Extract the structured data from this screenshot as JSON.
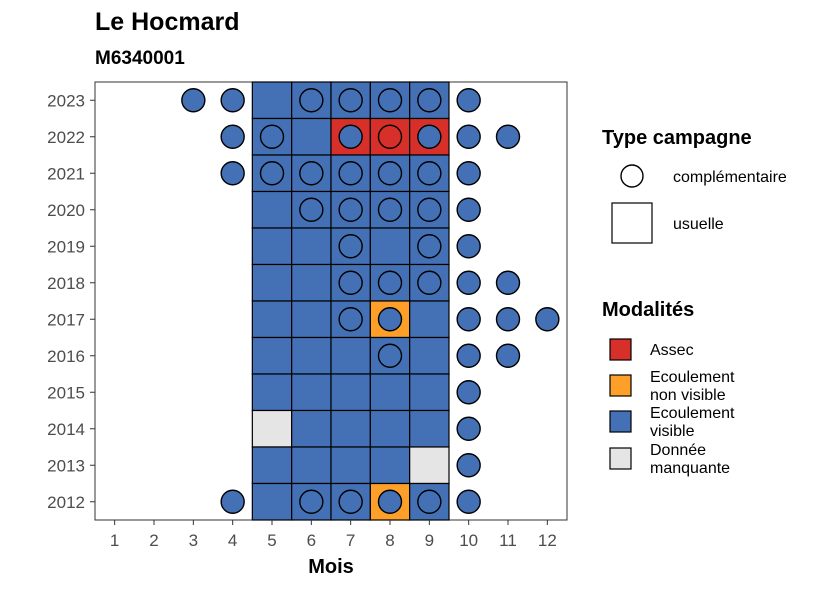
{
  "title": "Le Hocmard",
  "subtitle": "M6340001",
  "chart_data": {
    "type": "heatmap",
    "xlabel": "Mois",
    "ylabel": "",
    "x_ticks": [
      "1",
      "2",
      "3",
      "4",
      "5",
      "6",
      "7",
      "8",
      "9",
      "10",
      "11",
      "12"
    ],
    "y_ticks": [
      "2012",
      "2013",
      "2014",
      "2015",
      "2016",
      "2017",
      "2018",
      "2019",
      "2020",
      "2021",
      "2022",
      "2023"
    ],
    "xlim": [
      0.5,
      12.5
    ],
    "ylim": [
      2011.5,
      2023.5
    ],
    "grid": false,
    "usual_campaign_months": [
      5,
      6,
      7,
      8,
      9
    ],
    "cells": [
      {
        "year": 2023,
        "month": 5,
        "modalite": "visible"
      },
      {
        "year": 2023,
        "month": 6,
        "modalite": "visible"
      },
      {
        "year": 2023,
        "month": 7,
        "modalite": "visible"
      },
      {
        "year": 2023,
        "month": 8,
        "modalite": "visible"
      },
      {
        "year": 2023,
        "month": 9,
        "modalite": "visible"
      },
      {
        "year": 2022,
        "month": 5,
        "modalite": "visible"
      },
      {
        "year": 2022,
        "month": 6,
        "modalite": "visible"
      },
      {
        "year": 2022,
        "month": 7,
        "modalite": "assec"
      },
      {
        "year": 2022,
        "month": 8,
        "modalite": "assec"
      },
      {
        "year": 2022,
        "month": 9,
        "modalite": "assec"
      },
      {
        "year": 2021,
        "month": 5,
        "modalite": "visible"
      },
      {
        "year": 2021,
        "month": 6,
        "modalite": "visible"
      },
      {
        "year": 2021,
        "month": 7,
        "modalite": "visible"
      },
      {
        "year": 2021,
        "month": 8,
        "modalite": "visible"
      },
      {
        "year": 2021,
        "month": 9,
        "modalite": "visible"
      },
      {
        "year": 2020,
        "month": 5,
        "modalite": "visible"
      },
      {
        "year": 2020,
        "month": 6,
        "modalite": "visible"
      },
      {
        "year": 2020,
        "month": 7,
        "modalite": "visible"
      },
      {
        "year": 2020,
        "month": 8,
        "modalite": "visible"
      },
      {
        "year": 2020,
        "month": 9,
        "modalite": "visible"
      },
      {
        "year": 2019,
        "month": 5,
        "modalite": "visible"
      },
      {
        "year": 2019,
        "month": 6,
        "modalite": "visible"
      },
      {
        "year": 2019,
        "month": 7,
        "modalite": "visible"
      },
      {
        "year": 2019,
        "month": 8,
        "modalite": "visible"
      },
      {
        "year": 2019,
        "month": 9,
        "modalite": "visible"
      },
      {
        "year": 2018,
        "month": 5,
        "modalite": "visible"
      },
      {
        "year": 2018,
        "month": 6,
        "modalite": "visible"
      },
      {
        "year": 2018,
        "month": 7,
        "modalite": "visible"
      },
      {
        "year": 2018,
        "month": 8,
        "modalite": "visible"
      },
      {
        "year": 2018,
        "month": 9,
        "modalite": "visible"
      },
      {
        "year": 2017,
        "month": 5,
        "modalite": "visible"
      },
      {
        "year": 2017,
        "month": 6,
        "modalite": "visible"
      },
      {
        "year": 2017,
        "month": 7,
        "modalite": "visible"
      },
      {
        "year": 2017,
        "month": 8,
        "modalite": "non_visible"
      },
      {
        "year": 2017,
        "month": 9,
        "modalite": "visible"
      },
      {
        "year": 2016,
        "month": 5,
        "modalite": "visible"
      },
      {
        "year": 2016,
        "month": 6,
        "modalite": "visible"
      },
      {
        "year": 2016,
        "month": 7,
        "modalite": "visible"
      },
      {
        "year": 2016,
        "month": 8,
        "modalite": "visible"
      },
      {
        "year": 2016,
        "month": 9,
        "modalite": "visible"
      },
      {
        "year": 2015,
        "month": 5,
        "modalite": "visible"
      },
      {
        "year": 2015,
        "month": 6,
        "modalite": "visible"
      },
      {
        "year": 2015,
        "month": 7,
        "modalite": "visible"
      },
      {
        "year": 2015,
        "month": 8,
        "modalite": "visible"
      },
      {
        "year": 2015,
        "month": 9,
        "modalite": "visible"
      },
      {
        "year": 2014,
        "month": 5,
        "modalite": "manquante"
      },
      {
        "year": 2014,
        "month": 6,
        "modalite": "visible"
      },
      {
        "year": 2014,
        "month": 7,
        "modalite": "visible"
      },
      {
        "year": 2014,
        "month": 8,
        "modalite": "visible"
      },
      {
        "year": 2014,
        "month": 9,
        "modalite": "visible"
      },
      {
        "year": 2013,
        "month": 5,
        "modalite": "visible"
      },
      {
        "year": 2013,
        "month": 6,
        "modalite": "visible"
      },
      {
        "year": 2013,
        "month": 7,
        "modalite": "visible"
      },
      {
        "year": 2013,
        "month": 8,
        "modalite": "visible"
      },
      {
        "year": 2013,
        "month": 9,
        "modalite": "manquante"
      },
      {
        "year": 2012,
        "month": 5,
        "modalite": "visible"
      },
      {
        "year": 2012,
        "month": 6,
        "modalite": "visible"
      },
      {
        "year": 2012,
        "month": 7,
        "modalite": "visible"
      },
      {
        "year": 2012,
        "month": 8,
        "modalite": "non_visible"
      },
      {
        "year": 2012,
        "month": 9,
        "modalite": "visible"
      }
    ],
    "points": [
      {
        "year": 2023,
        "month": 3,
        "modalite": "visible"
      },
      {
        "year": 2023,
        "month": 4,
        "modalite": "visible"
      },
      {
        "year": 2023,
        "month": 6,
        "modalite": "visible"
      },
      {
        "year": 2023,
        "month": 7,
        "modalite": "visible"
      },
      {
        "year": 2023,
        "month": 8,
        "modalite": "visible"
      },
      {
        "year": 2023,
        "month": 9,
        "modalite": "visible"
      },
      {
        "year": 2023,
        "month": 10,
        "modalite": "visible"
      },
      {
        "year": 2022,
        "month": 4,
        "modalite": "visible"
      },
      {
        "year": 2022,
        "month": 5,
        "modalite": "visible"
      },
      {
        "year": 2022,
        "month": 7,
        "modalite": "visible"
      },
      {
        "year": 2022,
        "month": 8,
        "modalite": "assec"
      },
      {
        "year": 2022,
        "month": 9,
        "modalite": "visible"
      },
      {
        "year": 2022,
        "month": 10,
        "modalite": "visible"
      },
      {
        "year": 2022,
        "month": 11,
        "modalite": "visible"
      },
      {
        "year": 2021,
        "month": 4,
        "modalite": "visible"
      },
      {
        "year": 2021,
        "month": 5,
        "modalite": "visible"
      },
      {
        "year": 2021,
        "month": 6,
        "modalite": "visible"
      },
      {
        "year": 2021,
        "month": 7,
        "modalite": "visible"
      },
      {
        "year": 2021,
        "month": 8,
        "modalite": "visible"
      },
      {
        "year": 2021,
        "month": 9,
        "modalite": "visible"
      },
      {
        "year": 2021,
        "month": 10,
        "modalite": "visible"
      },
      {
        "year": 2020,
        "month": 6,
        "modalite": "visible"
      },
      {
        "year": 2020,
        "month": 7,
        "modalite": "visible"
      },
      {
        "year": 2020,
        "month": 8,
        "modalite": "visible"
      },
      {
        "year": 2020,
        "month": 9,
        "modalite": "visible"
      },
      {
        "year": 2020,
        "month": 10,
        "modalite": "visible"
      },
      {
        "year": 2019,
        "month": 7,
        "modalite": "visible"
      },
      {
        "year": 2019,
        "month": 9,
        "modalite": "visible"
      },
      {
        "year": 2019,
        "month": 10,
        "modalite": "visible"
      },
      {
        "year": 2018,
        "month": 7,
        "modalite": "visible"
      },
      {
        "year": 2018,
        "month": 8,
        "modalite": "visible"
      },
      {
        "year": 2018,
        "month": 9,
        "modalite": "visible"
      },
      {
        "year": 2018,
        "month": 10,
        "modalite": "visible"
      },
      {
        "year": 2018,
        "month": 11,
        "modalite": "visible"
      },
      {
        "year": 2017,
        "month": 7,
        "modalite": "visible"
      },
      {
        "year": 2017,
        "month": 8,
        "modalite": "visible"
      },
      {
        "year": 2017,
        "month": 10,
        "modalite": "visible"
      },
      {
        "year": 2017,
        "month": 11,
        "modalite": "visible"
      },
      {
        "year": 2017,
        "month": 12,
        "modalite": "visible"
      },
      {
        "year": 2016,
        "month": 8,
        "modalite": "visible"
      },
      {
        "year": 2016,
        "month": 10,
        "modalite": "visible"
      },
      {
        "year": 2016,
        "month": 11,
        "modalite": "visible"
      },
      {
        "year": 2015,
        "month": 10,
        "modalite": "visible"
      },
      {
        "year": 2014,
        "month": 10,
        "modalite": "visible"
      },
      {
        "year": 2013,
        "month": 10,
        "modalite": "visible"
      },
      {
        "year": 2012,
        "month": 4,
        "modalite": "visible"
      },
      {
        "year": 2012,
        "month": 6,
        "modalite": "visible"
      },
      {
        "year": 2012,
        "month": 7,
        "modalite": "visible"
      },
      {
        "year": 2012,
        "month": 8,
        "modalite": "visible"
      },
      {
        "year": 2012,
        "month": 9,
        "modalite": "visible"
      },
      {
        "year": 2012,
        "month": 10,
        "modalite": "visible"
      }
    ],
    "colors": {
      "assec": "#d7302a",
      "non_visible": "#fe9f2a",
      "visible": "#4471b5",
      "manquante": "#e5e5e5"
    },
    "legend": {
      "placement": "right",
      "type_title": "Type campagne",
      "type_items": [
        {
          "key": "complementaire",
          "label": "complémentaire",
          "shape": "circle"
        },
        {
          "key": "usuelle",
          "label": "usuelle",
          "shape": "square"
        }
      ],
      "mod_title": "Modalités",
      "mod_items": [
        {
          "key": "assec",
          "lines": [
            "Assec"
          ]
        },
        {
          "key": "non_visible",
          "lines": [
            "Ecoulement",
            "non visible"
          ]
        },
        {
          "key": "visible",
          "lines": [
            "Ecoulement",
            "visible"
          ]
        },
        {
          "key": "manquante",
          "lines": [
            "Donnée",
            "manquante"
          ]
        }
      ]
    }
  }
}
